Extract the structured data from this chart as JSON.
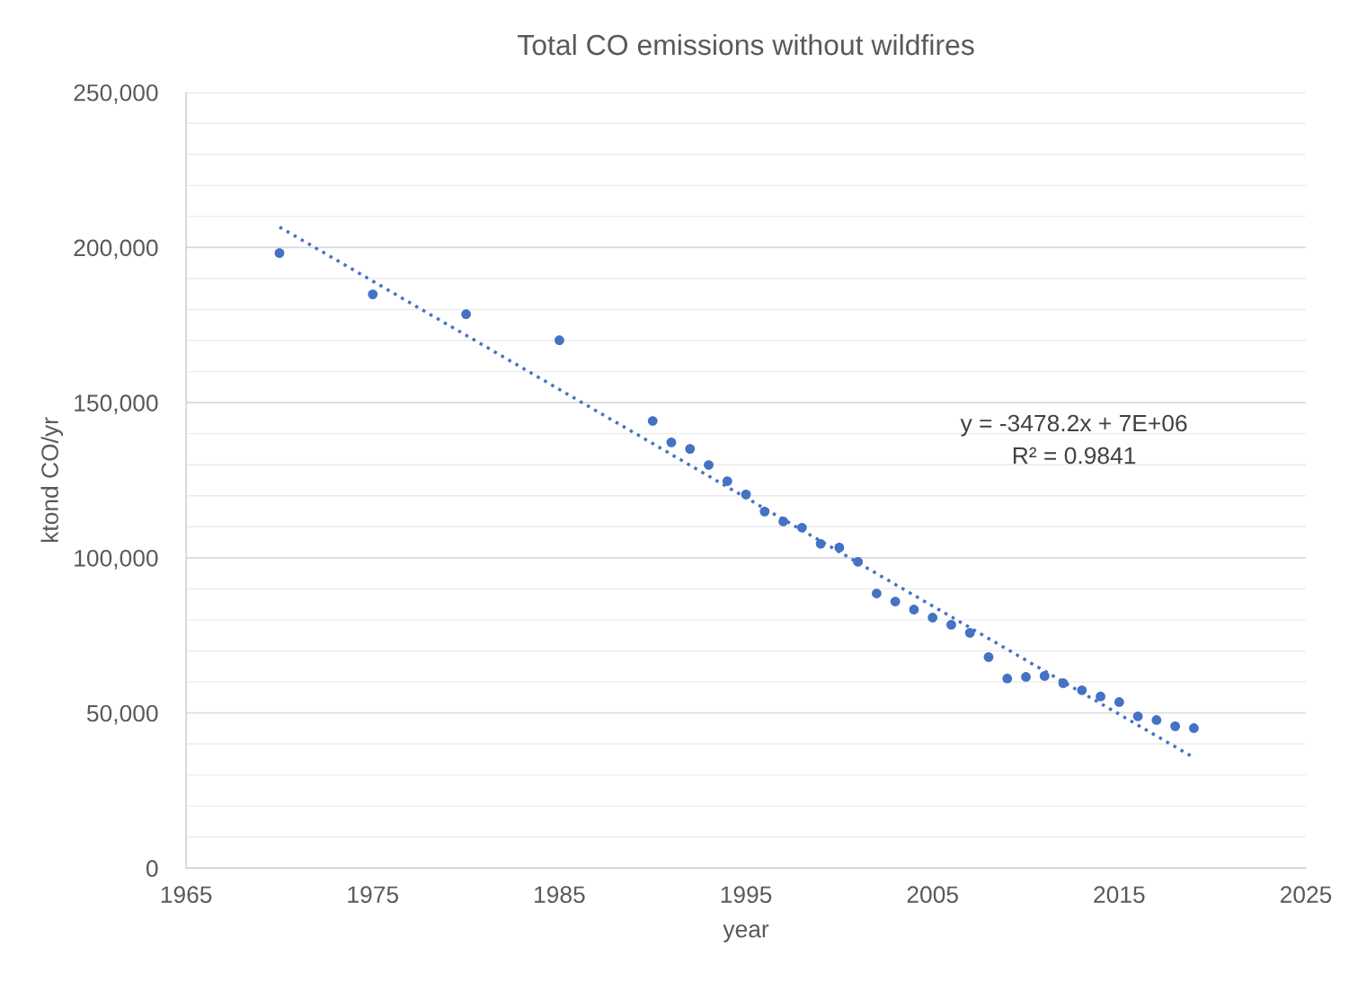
{
  "chart_data": {
    "type": "scatter",
    "title": "Total CO emissions without wildfires",
    "xlabel": "year",
    "ylabel": "ktond CO/yr",
    "x": [
      1970,
      1975,
      1980,
      1985,
      1990,
      1991,
      1992,
      1993,
      1994,
      1995,
      1996,
      1997,
      1998,
      1999,
      2000,
      2001,
      2002,
      2003,
      2004,
      2005,
      2006,
      2007,
      2008,
      2009,
      2010,
      2011,
      2012,
      2013,
      2014,
      2015,
      2016,
      2017,
      2018,
      2019
    ],
    "series": [
      {
        "color": "#4472c4",
        "marker": "circle",
        "values": [
          198200,
          184900,
          178500,
          170100,
          144100,
          137200,
          135100,
          129900,
          124700,
          120400,
          114900,
          111700,
          109700,
          104500,
          103300,
          98700,
          88500,
          85900,
          83300,
          80700,
          78400,
          75800,
          68000,
          61100,
          61600,
          61900,
          59600,
          57300,
          55300,
          53500,
          48900,
          47700,
          45700,
          45100
        ]
      },
      {
        "type": "line",
        "color": "#4472c4",
        "line_style": "dotted",
        "marker": "none",
        "x": [
          1970,
          2019
        ],
        "values": [
          206600,
          35600
        ]
      }
    ],
    "annotations": [
      "y = -3478.2x + 7E+06\nR² = 0.9841"
    ],
    "xlim": [
      1965,
      2025
    ],
    "xticks": [
      1965,
      1975,
      1985,
      1995,
      2005,
      2015,
      2025
    ],
    "ylim": [
      0,
      250000
    ],
    "yticks": [
      {
        "value": 0,
        "label": "0"
      },
      {
        "value": 10000,
        "label": null
      },
      {
        "value": 20000,
        "label": null
      },
      {
        "value": 30000,
        "label": null
      },
      {
        "value": 40000,
        "label": null
      },
      {
        "value": 50000,
        "label": "50,000"
      },
      {
        "value": 60000,
        "label": null
      },
      {
        "value": 70000,
        "label": null
      },
      {
        "value": 80000,
        "label": null
      },
      {
        "value": 90000,
        "label": null
      },
      {
        "value": 100000,
        "label": "100,000"
      },
      {
        "value": 110000,
        "label": null
      },
      {
        "value": 120000,
        "label": null
      },
      {
        "value": 130000,
        "label": null
      },
      {
        "value": 140000,
        "label": null
      },
      {
        "value": 150000,
        "label": "150,000"
      },
      {
        "value": 160000,
        "label": null
      },
      {
        "value": 170000,
        "label": null
      },
      {
        "value": 180000,
        "label": null
      },
      {
        "value": 190000,
        "label": null
      },
      {
        "value": 200000,
        "label": "200,000"
      },
      {
        "value": 210000,
        "label": null
      },
      {
        "value": 220000,
        "label": null
      },
      {
        "value": 230000,
        "label": null
      },
      {
        "value": 240000,
        "label": null
      },
      {
        "value": 250000,
        "label": "250,000"
      }
    ],
    "grid": "y"
  }
}
